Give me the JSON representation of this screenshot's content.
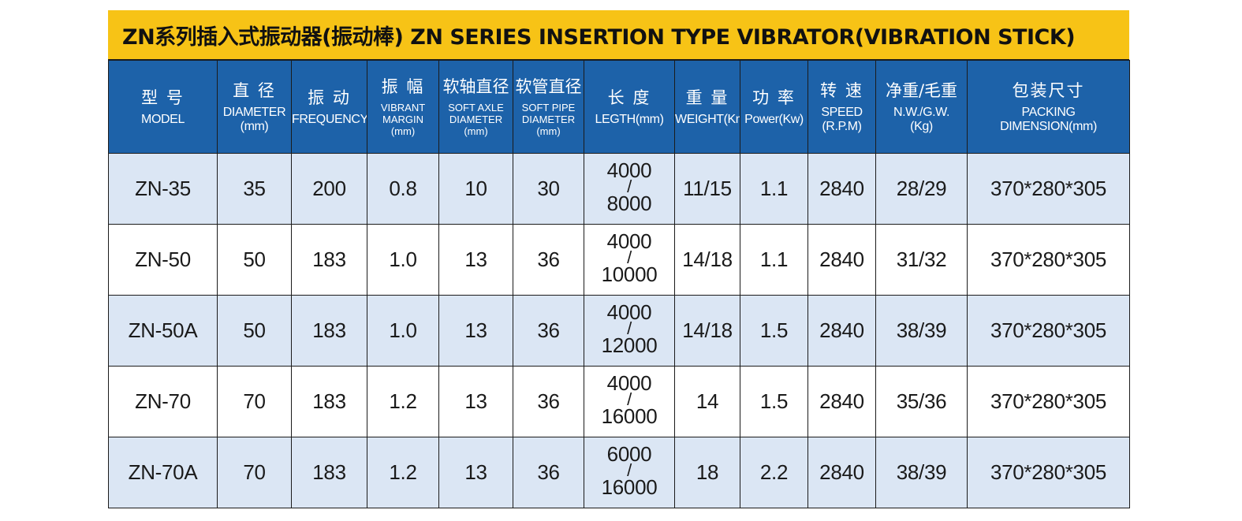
{
  "title": "ZN系列插入式振动器(振动棒) ZN SERIES INSERTION TYPE VIBRATOR(VIBRATION STICK)",
  "colors": {
    "title_bg": "#f7c316",
    "header_bg": "#1d62a9",
    "row_light": "#dbe6f4",
    "row_white": "#ffffff"
  },
  "headers": [
    {
      "cn": "型 号",
      "en": [
        "MODEL"
      ]
    },
    {
      "cn": "直 径",
      "en": [
        "DIAMETER",
        "(mm)"
      ]
    },
    {
      "cn": "振 动",
      "en": [
        "FREQUENCY"
      ]
    },
    {
      "cn": "振 幅",
      "en": [
        "VIBRANT",
        "MARGIN",
        "(mm)"
      ]
    },
    {
      "cn": "软轴直径",
      "en": [
        "SOFT AXLE",
        "DIAMETER",
        "(mm)"
      ]
    },
    {
      "cn": "软管直径",
      "en": [
        "SOFT PIPE",
        "DIAMETER",
        "(mm)"
      ]
    },
    {
      "cn": "长 度",
      "en": [
        "LEGTH(mm)"
      ]
    },
    {
      "cn": "重 量",
      "en": [
        "WEIGHT(Km)"
      ]
    },
    {
      "cn": "功 率",
      "en": [
        "Power(Kw)"
      ]
    },
    {
      "cn": "转 速",
      "en": [
        "SPEED",
        "(R.P.M)"
      ]
    },
    {
      "cn": "净重/毛重",
      "en": [
        "N.W./G.W.",
        "(Kg)"
      ]
    },
    {
      "cn": "包装尺寸",
      "en": [
        "PACKING",
        "DIMENSION(mm)"
      ]
    }
  ],
  "rows": [
    {
      "model": "ZN-35",
      "diameter": "35",
      "frequency": "200",
      "amplitude": "0.8",
      "soft_axle": "10",
      "soft_pipe": "30",
      "length_top": "4000",
      "length_sep": "/",
      "length_bottom": "8000",
      "weight": "11/15",
      "power": "1.1",
      "speed": "2840",
      "nw_gw": "28/29",
      "packing": "370*280*305"
    },
    {
      "model": "ZN-50",
      "diameter": "50",
      "frequency": "183",
      "amplitude": "1.0",
      "soft_axle": "13",
      "soft_pipe": "36",
      "length_top": "4000",
      "length_sep": "/",
      "length_bottom": "10000",
      "weight": "14/18",
      "power": "1.1",
      "speed": "2840",
      "nw_gw": "31/32",
      "packing": "370*280*305"
    },
    {
      "model": "ZN-50A",
      "diameter": "50",
      "frequency": "183",
      "amplitude": "1.0",
      "soft_axle": "13",
      "soft_pipe": "36",
      "length_top": "4000",
      "length_sep": "/",
      "length_bottom": "12000",
      "weight": "14/18",
      "power": "1.5",
      "speed": "2840",
      "nw_gw": "38/39",
      "packing": "370*280*305"
    },
    {
      "model": "ZN-70",
      "diameter": "70",
      "frequency": "183",
      "amplitude": "1.2",
      "soft_axle": "13",
      "soft_pipe": "36",
      "length_top": "4000",
      "length_sep": "/",
      "length_bottom": "16000",
      "weight": "14",
      "power": "1.5",
      "speed": "2840",
      "nw_gw": "35/36",
      "packing": "370*280*305"
    },
    {
      "model": "ZN-70A",
      "diameter": "70",
      "frequency": "183",
      "amplitude": "1.2",
      "soft_axle": "13",
      "soft_pipe": "36",
      "length_top": "6000",
      "length_sep": "/",
      "length_bottom": "16000",
      "weight": "18",
      "power": "2.2",
      "speed": "2840",
      "nw_gw": "38/39",
      "packing": "370*280*305"
    }
  ]
}
